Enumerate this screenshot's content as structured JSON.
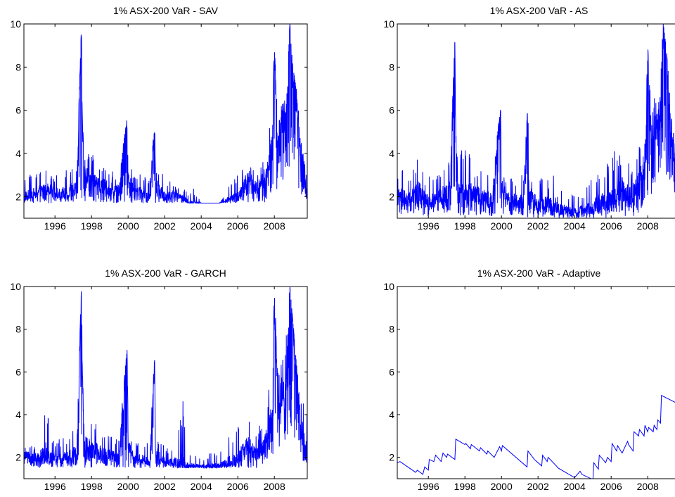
{
  "figure": {
    "line_color": "#0000ff",
    "axis_color": "#000000",
    "background": "#ffffff"
  },
  "chart_data": [
    {
      "type": "line",
      "title": "1% ASX-200 VaR - SAV",
      "xlabel": "",
      "ylabel": "",
      "xlim": [
        1994.3,
        2009.8
      ],
      "ylim": [
        1,
        10
      ],
      "xticks": [
        1996,
        1998,
        2000,
        2002,
        2004,
        2006,
        2008
      ],
      "xtick_labels": [
        "1996",
        "1998",
        "2000",
        "2002",
        "2004",
        "2006",
        "2008"
      ],
      "yticks": [
        2,
        4,
        6,
        8,
        10
      ],
      "ytick_labels": [
        "2",
        "4",
        "6",
        "8",
        "10"
      ],
      "grid": false,
      "series": [
        {
          "x": [
            1994.3,
            1995.0,
            1995.5,
            1995.8,
            1996.3,
            1996.8,
            1997.2,
            1997.45,
            1997.5,
            1997.6,
            1998.0,
            1998.5,
            1999.0,
            1999.5,
            1999.95,
            2000.0,
            2000.3,
            2000.8,
            2001.2,
            2001.45,
            2001.5,
            2002.0,
            2002.5,
            2003.0,
            2003.3,
            2003.6,
            2004.0,
            2004.5,
            2005.0,
            2005.5,
            2006.0,
            2006.3,
            2006.6,
            2007.0,
            2007.4,
            2007.7,
            2007.9,
            2008.0,
            2008.2,
            2008.4,
            2008.7,
            2008.85,
            2009.0,
            2009.2,
            2009.4,
            2009.6,
            2009.8
          ],
          "y": [
            2.0,
            2.2,
            2.4,
            2.3,
            2.1,
            2.3,
            2.4,
            10.0,
            5.5,
            3.0,
            2.8,
            2.6,
            2.4,
            2.3,
            5.7,
            3.0,
            2.3,
            2.2,
            2.0,
            5.4,
            2.6,
            2.0,
            2.1,
            2.0,
            1.7,
            1.7,
            1.7,
            1.7,
            1.7,
            1.9,
            2.0,
            2.5,
            3.0,
            2.4,
            2.8,
            3.5,
            4.5,
            8.9,
            4.5,
            5.5,
            6.0,
            10.0,
            8.0,
            6.5,
            4.5,
            3.5,
            2.0
          ],
          "hi": [
            3.0,
            3.2,
            3.5,
            3.0,
            3.2,
            3.4,
            3.5,
            10.0,
            5.5,
            4.0,
            4.0,
            3.5,
            3.4,
            3.0,
            5.7,
            3.6,
            3.2,
            3.0,
            3.1,
            5.4,
            3.5,
            3.0,
            2.5,
            2.4,
            2.3,
            2.4,
            1.7,
            1.7,
            1.7,
            2.5,
            3.0,
            3.5,
            4.0,
            3.2,
            4.0,
            5.5,
            6.5,
            8.9,
            6.0,
            7.0,
            8.0,
            10.0,
            8.1,
            7.0,
            5.5,
            5.0,
            5.0
          ],
          "lo": [
            1.7,
            1.7,
            1.7,
            1.7,
            1.7,
            1.7,
            1.7,
            1.9,
            1.8,
            1.7,
            1.7,
            1.7,
            1.7,
            1.7,
            1.7,
            1.7,
            1.7,
            1.7,
            1.7,
            1.7,
            1.7,
            1.7,
            1.7,
            1.7,
            1.7,
            1.7,
            1.7,
            1.7,
            1.7,
            1.7,
            1.7,
            1.7,
            1.7,
            1.7,
            1.7,
            1.8,
            2.0,
            2.2,
            2.2,
            2.5,
            3.0,
            3.5,
            3.0,
            2.5,
            2.0,
            1.9,
            1.9
          ]
        }
      ]
    },
    {
      "type": "line",
      "title": "1% ASX-200 VaR - AS",
      "xlabel": "",
      "ylabel": "",
      "xlim": [
        1994.3,
        2009.8
      ],
      "ylim": [
        1,
        10
      ],
      "xticks": [
        1996,
        1998,
        2000,
        2002,
        2004,
        2006,
        2008
      ],
      "xtick_labels": [
        "1996",
        "1998",
        "2000",
        "2002",
        "2004",
        "2006",
        "2008"
      ],
      "yticks": [
        2,
        4,
        6,
        8,
        10
      ],
      "ytick_labels": [
        "2",
        "4",
        "6",
        "8",
        "10"
      ],
      "grid": false,
      "series": [
        {
          "x": [
            1994.3,
            1995.0,
            1995.5,
            1995.8,
            1996.3,
            1996.8,
            1997.2,
            1997.45,
            1997.5,
            1997.6,
            1998.0,
            1998.5,
            1999.0,
            1999.5,
            1999.95,
            2000.0,
            2000.3,
            2000.8,
            2001.2,
            2001.45,
            2001.5,
            2002.0,
            2002.5,
            2003.0,
            2003.3,
            2003.6,
            2004.0,
            2004.5,
            2005.0,
            2005.5,
            2006.0,
            2006.3,
            2006.6,
            2007.0,
            2007.4,
            2007.7,
            2007.9,
            2008.0,
            2008.2,
            2008.4,
            2008.7,
            2008.85,
            2009.0,
            2009.2,
            2009.4,
            2009.6,
            2009.8
          ],
          "y": [
            2.0,
            1.9,
            2.2,
            1.9,
            1.8,
            2.1,
            2.3,
            9.3,
            5.0,
            2.5,
            2.3,
            2.1,
            2.0,
            1.8,
            6.1,
            2.5,
            1.9,
            1.8,
            1.7,
            6.3,
            2.2,
            1.6,
            1.7,
            1.7,
            1.4,
            1.4,
            1.3,
            1.4,
            1.5,
            1.8,
            1.8,
            2.3,
            2.5,
            2.0,
            2.4,
            3.0,
            4.0,
            9.0,
            4.0,
            5.0,
            6.0,
            10.0,
            9.0,
            6.0,
            4.0,
            3.0,
            1.8
          ],
          "hi": [
            3.5,
            3.0,
            4.4,
            3.0,
            3.0,
            3.5,
            3.8,
            9.3,
            5.0,
            3.8,
            4.6,
            3.5,
            3.3,
            3.0,
            6.1,
            3.5,
            3.0,
            2.8,
            3.2,
            6.3,
            3.3,
            3.0,
            2.8,
            3.5,
            2.5,
            2.2,
            2.1,
            2.3,
            3.0,
            3.5,
            4.0,
            4.2,
            4.0,
            3.5,
            4.5,
            5.3,
            6.5,
            9.0,
            6.0,
            7.0,
            8.0,
            10.0,
            9.0,
            7.0,
            5.0,
            5.0,
            4.5
          ],
          "lo": [
            1.1,
            1.1,
            1.2,
            1.1,
            1.1,
            1.2,
            1.2,
            1.4,
            1.3,
            1.1,
            1.1,
            1.1,
            1.1,
            1.1,
            1.1,
            1.1,
            1.1,
            1.1,
            1.0,
            1.0,
            1.0,
            1.0,
            1.1,
            1.0,
            1.0,
            1.0,
            1.0,
            1.0,
            1.0,
            1.0,
            1.0,
            1.1,
            1.1,
            1.1,
            1.1,
            1.3,
            1.5,
            1.8,
            2.0,
            2.5,
            3.0,
            3.5,
            3.0,
            2.5,
            2.0,
            1.6,
            1.3
          ]
        }
      ]
    },
    {
      "type": "line",
      "title": "1% ASX-200 VaR - GARCH",
      "xlabel": "",
      "ylabel": "",
      "xlim": [
        1994.3,
        2009.8
      ],
      "ylim": [
        1,
        10
      ],
      "xticks": [
        1996,
        1998,
        2000,
        2002,
        2004,
        2006,
        2008
      ],
      "xtick_labels": [
        "1996",
        "1998",
        "2000",
        "2002",
        "2004",
        "2006",
        "2008"
      ],
      "yticks": [
        2,
        4,
        6,
        8,
        10
      ],
      "ytick_labels": [
        "2",
        "4",
        "6",
        "8",
        "10"
      ],
      "grid": false,
      "series": [
        {
          "x": [
            1994.3,
            1995.0,
            1995.5,
            1995.8,
            1996.3,
            1996.8,
            1997.2,
            1997.45,
            1997.5,
            1997.6,
            1998.0,
            1998.5,
            1999.0,
            1999.5,
            1999.95,
            2000.0,
            2000.3,
            2000.8,
            2001.2,
            2001.45,
            2001.5,
            2002.0,
            2002.5,
            2003.0,
            2003.3,
            2003.6,
            2004.0,
            2004.5,
            2005.0,
            2005.5,
            2006.0,
            2006.3,
            2006.6,
            2007.0,
            2007.4,
            2007.7,
            2007.9,
            2008.0,
            2008.2,
            2008.4,
            2008.7,
            2008.85,
            2009.0,
            2009.2,
            2009.4,
            2009.6,
            2009.8
          ],
          "y": [
            2.1,
            2.0,
            2.2,
            2.0,
            1.9,
            2.1,
            2.3,
            10.0,
            6.0,
            2.6,
            2.4,
            2.2,
            2.1,
            1.9,
            7.1,
            2.6,
            2.0,
            1.9,
            1.8,
            6.6,
            2.3,
            1.8,
            1.8,
            1.7,
            1.6,
            1.6,
            1.6,
            1.6,
            1.6,
            1.8,
            1.9,
            2.3,
            2.6,
            2.1,
            2.4,
            3.2,
            4.0,
            9.7,
            4.2,
            5.0,
            6.0,
            10.0,
            8.4,
            6.0,
            4.0,
            3.0,
            2.0
          ],
          "hi": [
            2.7,
            2.6,
            4.8,
            2.8,
            2.9,
            3.2,
            3.5,
            10.0,
            6.0,
            3.8,
            4.1,
            3.5,
            3.1,
            3.1,
            7.1,
            3.2,
            2.8,
            2.8,
            3.1,
            6.6,
            3.2,
            2.5,
            2.5,
            4.8,
            2.3,
            2.2,
            2.0,
            2.2,
            2.4,
            3.0,
            3.5,
            4.0,
            3.8,
            3.0,
            4.0,
            5.5,
            6.5,
            9.7,
            6.0,
            7.0,
            8.0,
            10.0,
            8.5,
            6.5,
            5.0,
            4.8,
            4.5
          ],
          "lo": [
            1.6,
            1.5,
            1.5,
            1.5,
            1.5,
            1.5,
            1.6,
            1.8,
            1.7,
            1.5,
            1.5,
            1.5,
            1.5,
            1.5,
            1.5,
            1.5,
            1.5,
            1.5,
            1.5,
            1.5,
            1.5,
            1.5,
            1.5,
            1.5,
            1.5,
            1.5,
            1.5,
            1.5,
            1.5,
            1.5,
            1.5,
            1.5,
            1.5,
            1.5,
            1.5,
            1.7,
            1.9,
            2.2,
            2.2,
            2.5,
            3.0,
            3.5,
            3.0,
            2.5,
            2.0,
            1.8,
            1.7
          ]
        }
      ]
    },
    {
      "type": "line",
      "title": "1% ASX-200 VaR - Adaptive",
      "xlabel": "",
      "ylabel": "",
      "xlim": [
        1994.3,
        2009.8
      ],
      "ylim": [
        1,
        10
      ],
      "xticks": [
        1996,
        1998,
        2000,
        2002,
        2004,
        2006,
        2008
      ],
      "xtick_labels": [
        "1996",
        "1998",
        "2000",
        "2002",
        "2004",
        "2006",
        "2008"
      ],
      "yticks": [
        2,
        4,
        6,
        8,
        10
      ],
      "ytick_labels": [
        "2",
        "4",
        "6",
        "8",
        "10"
      ],
      "grid": false,
      "series": [
        {
          "x": [
            1994.3,
            1994.45,
            1995.3,
            1995.4,
            1995.7,
            1995.8,
            1996.0,
            1996.05,
            1996.3,
            1996.4,
            1996.7,
            1996.8,
            1997.0,
            1997.05,
            1997.45,
            1997.5,
            1998.0,
            1998.05,
            1998.3,
            1998.35,
            1998.8,
            1998.85,
            1999.2,
            1999.25,
            1999.6,
            1999.9,
            2000.0,
            2000.05,
            2001.4,
            2001.45,
            2001.8,
            2002.2,
            2002.25,
            2002.5,
            2002.55,
            2003.0,
            2003.1,
            2003.5,
            2004.0,
            2004.3,
            2004.4,
            2004.9,
            2005.0,
            2005.05,
            2005.3,
            2005.35,
            2005.7,
            2005.8,
            2006.0,
            2006.05,
            2006.3,
            2006.35,
            2006.6,
            2006.9,
            2006.95,
            2007.2,
            2007.25,
            2007.5,
            2007.55,
            2007.8,
            2007.85,
            2008.0,
            2008.05,
            2008.3,
            2008.35,
            2008.5,
            2008.55,
            2008.7,
            2008.75,
            2009.8
          ],
          "y": [
            1.75,
            1.8,
            1.3,
            1.4,
            1.2,
            1.55,
            1.4,
            1.9,
            1.8,
            2.1,
            1.8,
            2.2,
            2.0,
            2.15,
            1.9,
            2.85,
            2.6,
            2.65,
            2.4,
            2.6,
            2.3,
            2.45,
            2.15,
            2.3,
            2.0,
            2.5,
            2.3,
            2.55,
            1.55,
            2.3,
            1.9,
            1.6,
            2.1,
            1.8,
            2.0,
            1.6,
            1.5,
            1.3,
            1.05,
            1.35,
            1.2,
            1.0,
            0.9,
            1.75,
            1.45,
            2.1,
            1.75,
            2.0,
            1.8,
            2.65,
            2.3,
            2.55,
            2.2,
            2.75,
            2.6,
            2.3,
            3.2,
            3.0,
            3.3,
            3.0,
            3.5,
            3.2,
            3.4,
            3.2,
            3.5,
            3.3,
            3.75,
            3.6,
            4.9,
            4.45
          ]
        }
      ]
    }
  ]
}
